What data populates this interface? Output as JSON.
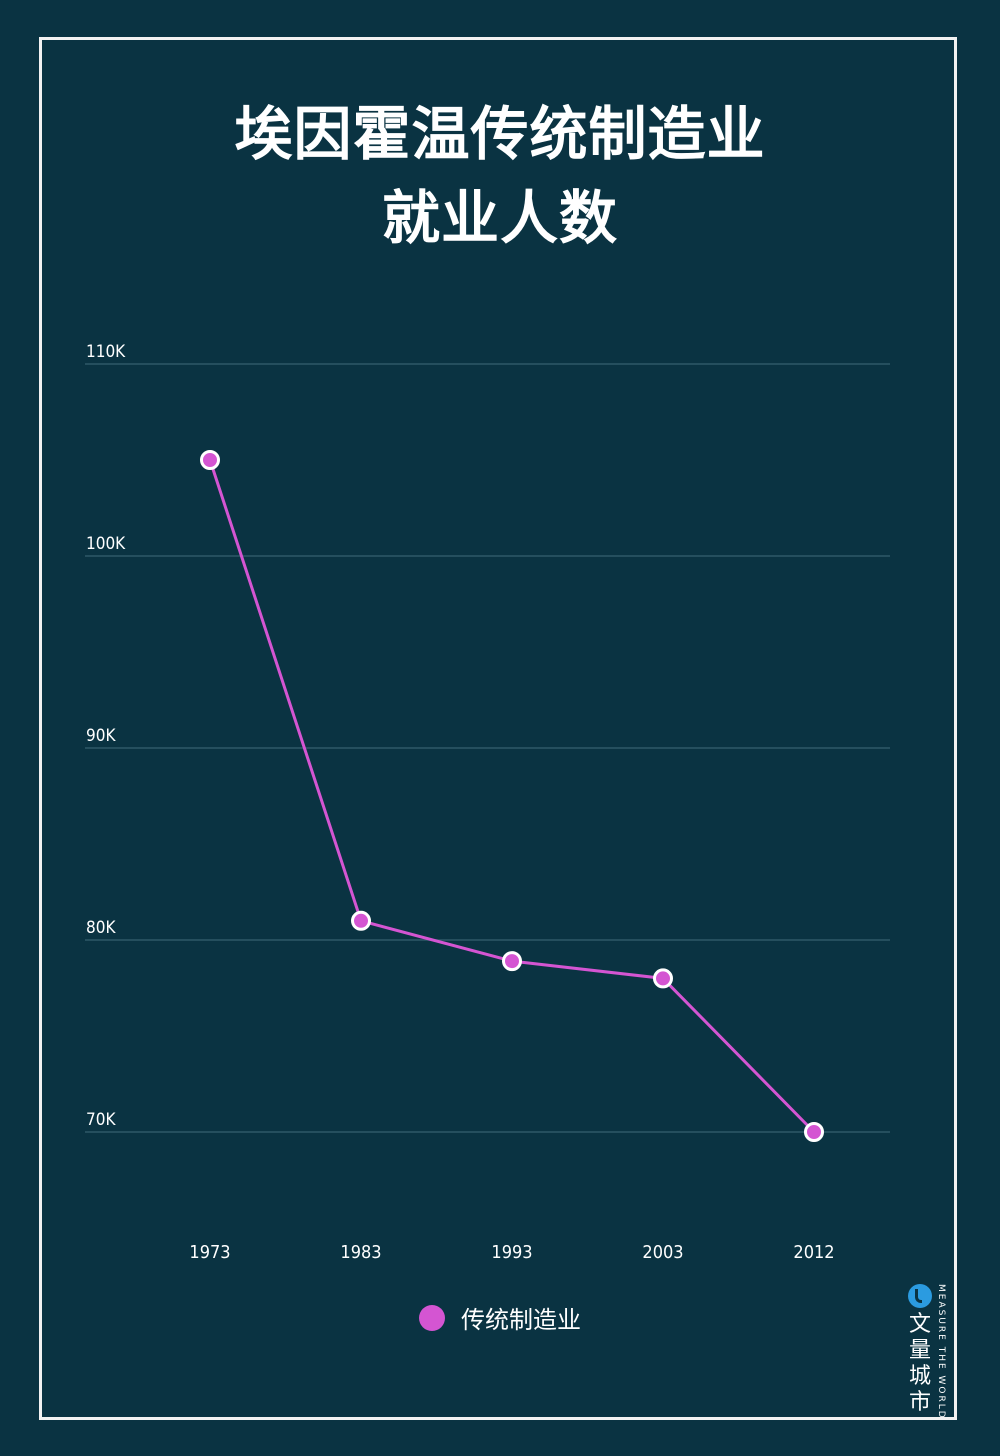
{
  "title_lines": [
    "埃因霍温传统制造业",
    "就业人数"
  ],
  "chart_data": {
    "type": "line",
    "title": "埃因霍温传统制造业就业人数",
    "xlabel": "",
    "ylabel": "",
    "x": [
      "1973",
      "1983",
      "1993",
      "2003",
      "2012"
    ],
    "series": [
      {
        "name": "传统制造业",
        "values": [
          105000,
          81000,
          78900,
          78000,
          70000
        ],
        "color": "#d455d2"
      }
    ],
    "y_ticks": [
      70000,
      80000,
      90000,
      100000,
      110000
    ],
    "y_tick_labels": [
      "70K",
      "80K",
      "90K",
      "100K",
      "110K"
    ],
    "ylim": [
      70000,
      110000
    ],
    "grid": true,
    "legend": "bottom-center"
  },
  "legend": {
    "label": "传统制造业"
  },
  "brand": {
    "name_cn": "文量城市",
    "tagline": "MEASURE THE WORLD"
  },
  "colors": {
    "background": "#0a3342",
    "grid": "#2e5968",
    "line": "#d455d2",
    "text": "#ffffff"
  }
}
